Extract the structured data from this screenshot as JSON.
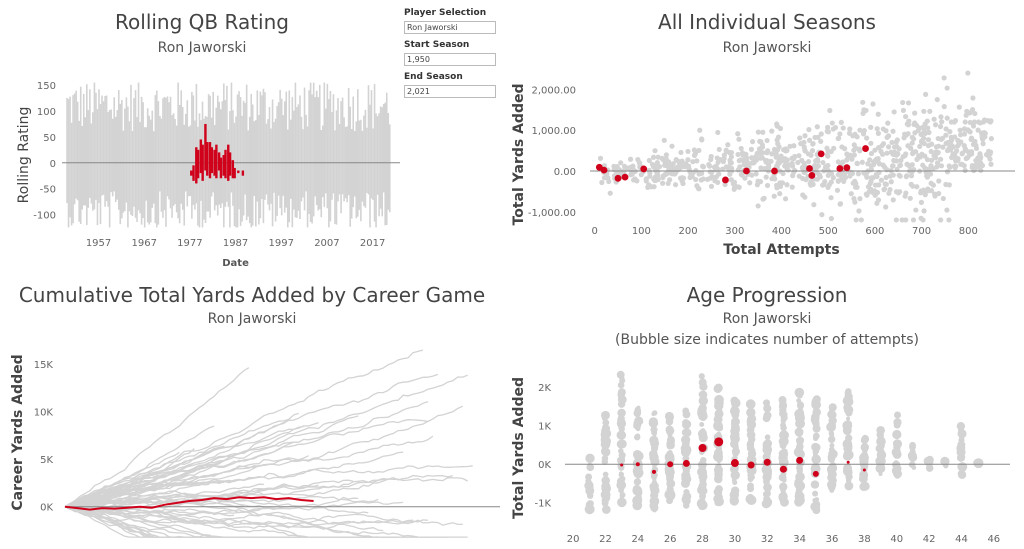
{
  "controls": {
    "player_label": "Player Selection",
    "player_value": "Ron Jaworski",
    "start_label": "Start Season",
    "start_value": "1,950",
    "end_label": "End Season",
    "end_value": "2,021"
  },
  "colors": {
    "highlight": "#d0021b",
    "background_series": "#d3d3d3",
    "zero_line": "#888888"
  },
  "chart_data": [
    {
      "id": "rolling",
      "type": "line",
      "title": "Rolling QB Rating",
      "subtitle": "Ron Jaworski",
      "xlabel": "Date",
      "ylabel": "Rolling Rating",
      "xlim": [
        1949,
        2023
      ],
      "ylim": [
        -130,
        160
      ],
      "x_ticks": [
        1957,
        1967,
        1977,
        1987,
        1997,
        2007,
        2017
      ],
      "y_ticks": [
        -100,
        -50,
        0,
        50,
        100,
        150
      ],
      "highlight_series": {
        "name": "Ron Jaworski",
        "x": [
          1977.3,
          1977.8,
          1978.4,
          1978.8,
          1979.4,
          1979.8,
          1980.4,
          1980.8,
          1981.4,
          1981.8,
          1982.4,
          1982.8,
          1983.4,
          1983.8,
          1984.4,
          1984.8,
          1985.4,
          1985.8,
          1986.4,
          1986.8,
          1987.6,
          1988.6
        ],
        "y_high": [
          -15,
          -5,
          30,
          25,
          45,
          35,
          75,
          40,
          40,
          30,
          25,
          35,
          20,
          10,
          15,
          25,
          35,
          20,
          5,
          -10,
          -15,
          -15
        ],
        "y_low": [
          -25,
          -35,
          -40,
          -30,
          -20,
          -35,
          -15,
          -25,
          -30,
          -20,
          -25,
          -30,
          -15,
          -30,
          -25,
          -30,
          -35,
          -25,
          -30,
          -30,
          -20,
          -25
        ]
      }
    },
    {
      "id": "seasons",
      "type": "scatter",
      "title": "All Individual Seasons",
      "subtitle": "Ron Jaworski",
      "xlabel": "Total Attempts",
      "ylabel": "Total Yards Added",
      "xlim": [
        -10,
        900
      ],
      "ylim": [
        -1300,
        2500
      ],
      "x_ticks": [
        0,
        100,
        200,
        300,
        400,
        500,
        600,
        700,
        800
      ],
      "y_ticks": [
        -1000,
        0,
        1000,
        2000
      ],
      "y_tick_labels": [
        "-1,000.00",
        "0.00",
        "1,000.00",
        "2,000.00"
      ],
      "highlight_points": [
        [
          10,
          90
        ],
        [
          20,
          20
        ],
        [
          50,
          -180
        ],
        [
          65,
          -150
        ],
        [
          105,
          50
        ],
        [
          280,
          -220
        ],
        [
          325,
          0
        ],
        [
          385,
          0
        ],
        [
          460,
          60
        ],
        [
          465,
          -110
        ],
        [
          485,
          420
        ],
        [
          525,
          60
        ],
        [
          540,
          80
        ],
        [
          580,
          550
        ]
      ]
    },
    {
      "id": "cumulative",
      "type": "line",
      "title": "Cumulative Total Yards Added by Career Game",
      "subtitle": "Ron Jaworski",
      "xlabel": "",
      "ylabel": "Career Yards Added",
      "xlim": [
        0,
        350
      ],
      "ylim": [
        -3500,
        17000
      ],
      "y_ticks": [
        0,
        5000,
        10000,
        15000
      ],
      "y_tick_labels": [
        "0K",
        "5K",
        "10K",
        "15K"
      ],
      "highlight_series": {
        "name": "Ron Jaworski",
        "x": [
          0,
          10,
          20,
          30,
          40,
          50,
          60,
          70,
          80,
          90,
          100,
          110,
          120,
          130,
          140,
          150,
          160,
          170,
          180,
          190,
          200
        ],
        "y": [
          0,
          -150,
          -300,
          -150,
          -200,
          -100,
          0,
          -100,
          200,
          400,
          600,
          700,
          900,
          800,
          1000,
          900,
          1000,
          800,
          900,
          700,
          600
        ]
      }
    },
    {
      "id": "age",
      "type": "scatter",
      "title": "Age Progression",
      "subtitle": "Ron Jaworski",
      "subtitle2": "(Bubble size indicates number of attempts)",
      "xlabel": "",
      "ylabel": "Total Yards Added",
      "xlim": [
        19.5,
        47
      ],
      "ylim": [
        -1500,
        2600
      ],
      "x_ticks": [
        20,
        22,
        24,
        26,
        28,
        30,
        32,
        34,
        36,
        38,
        40,
        42,
        44,
        46
      ],
      "y_ticks": [
        -1000,
        0,
        1000,
        2000
      ],
      "y_tick_labels": [
        "-1K",
        "0K",
        "1K",
        "2K"
      ],
      "highlight_points": [
        [
          23,
          -20,
          3
        ],
        [
          24,
          0,
          4
        ],
        [
          25,
          -200,
          4
        ],
        [
          26,
          0,
          6
        ],
        [
          27,
          20,
          7
        ],
        [
          28,
          420,
          8
        ],
        [
          29,
          580,
          9
        ],
        [
          30,
          30,
          8
        ],
        [
          31,
          -20,
          7
        ],
        [
          32,
          50,
          7
        ],
        [
          33,
          -130,
          7
        ],
        [
          34,
          100,
          7
        ],
        [
          35,
          -250,
          6
        ],
        [
          37,
          50,
          3
        ],
        [
          38,
          -150,
          3
        ]
      ]
    }
  ]
}
